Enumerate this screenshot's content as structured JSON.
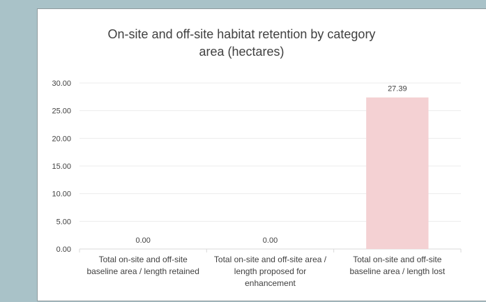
{
  "chart_data": {
    "type": "bar",
    "title_line1": "On-site and off-site habitat retention by category",
    "title_line2": "area (hectares)",
    "categories": [
      [
        "Total on-site and off-site",
        "baseline area / length retained"
      ],
      [
        "Total on-site and off-site area /",
        "length proposed for",
        "enhancement"
      ],
      [
        "Total on-site and off-site",
        "baseline area / length lost"
      ]
    ],
    "values": [
      0,
      0,
      27.39
    ],
    "data_labels": [
      "0.00",
      "0.00",
      "27.39"
    ],
    "yticks": [
      "0.00",
      "5.00",
      "10.00",
      "15.00",
      "20.00",
      "25.00",
      "30.00"
    ],
    "ylim": [
      0,
      30
    ],
    "grid": true,
    "bar_color": "#f4d1d3",
    "grid_color": "#ececec"
  }
}
